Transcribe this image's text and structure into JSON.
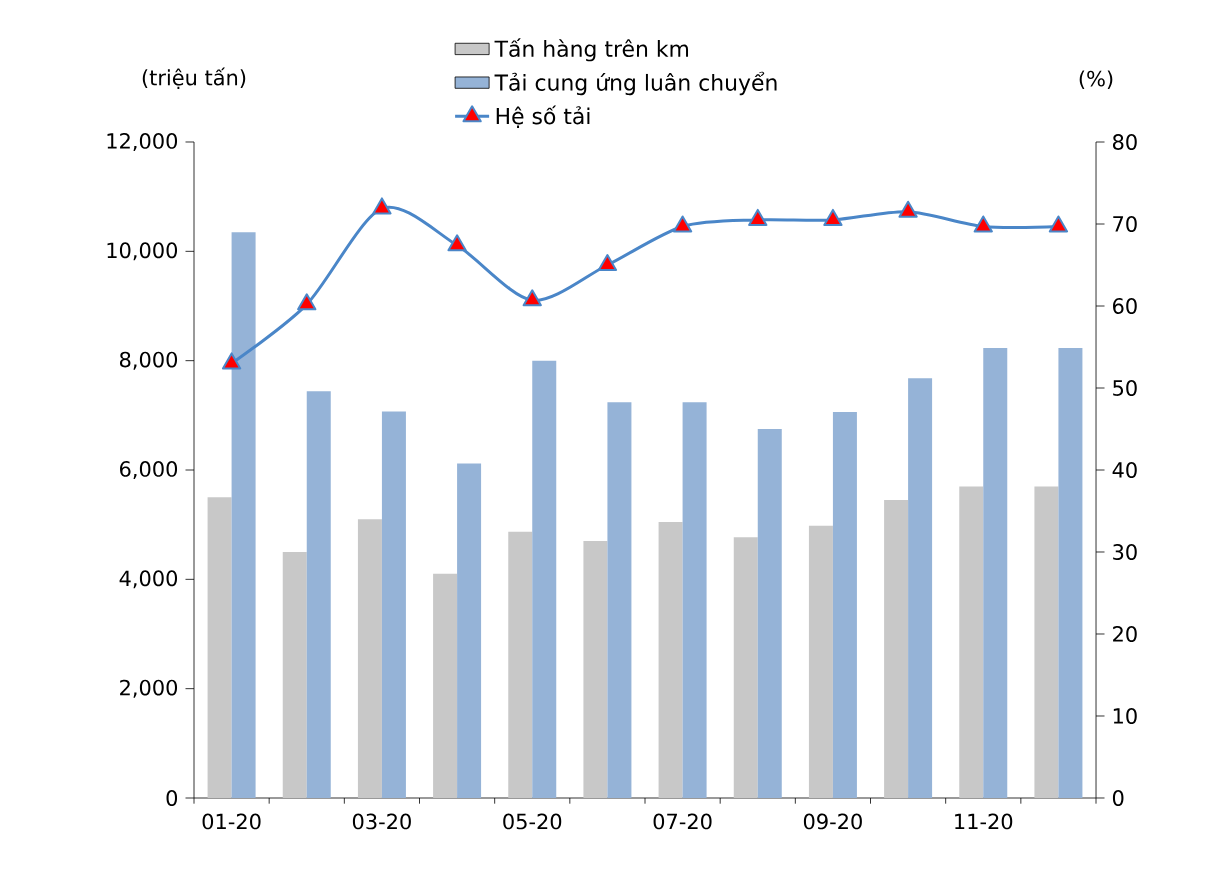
{
  "chart_data": {
    "type": "bar",
    "categories": [
      "01-20",
      null,
      "03-20",
      null,
      "05-20",
      null,
      "07-20",
      null,
      "09-20",
      null,
      "11-20",
      null
    ],
    "ylabel": "(triệu tấn)",
    "y2label": "(%)",
    "ylim": [
      0,
      12000
    ],
    "yticks": [
      {
        "value": 0,
        "label": "0"
      },
      {
        "value": 2000,
        "label": "2,000"
      },
      {
        "value": 4000,
        "label": "4,000"
      },
      {
        "value": 6000,
        "label": "6,000"
      },
      {
        "value": 8000,
        "label": "8,000"
      },
      {
        "value": 10000,
        "label": "10,000"
      },
      {
        "value": 12000,
        "label": "12,000"
      }
    ],
    "y2lim": [
      0,
      80
    ],
    "y2ticks": [
      0,
      10,
      20,
      30,
      40,
      50,
      60,
      70,
      80
    ],
    "legend": "top",
    "grid": false,
    "series": [
      {
        "name": "Tấn hàng trên km",
        "color": "#c8c8c8",
        "values": [
          5500,
          4500,
          5100,
          4100,
          4870,
          4700,
          5050,
          4770,
          4980,
          5450,
          5700,
          5700
        ]
      },
      {
        "name": "Tải cung ứng luân chuyển",
        "color": "#95b3d7",
        "values": [
          10350,
          7440,
          7070,
          6120,
          8000,
          7240,
          7240,
          6750,
          7060,
          7680,
          8230,
          8230
        ]
      },
      {
        "name": "Hệ số tải",
        "type": "line",
        "axis": "y2",
        "color": "#4a86c8",
        "marker": "triangle",
        "line_style": "solid",
        "values": [
          53,
          60.2,
          71.9,
          67.4,
          60.7,
          65,
          69.7,
          70.5,
          70.5,
          71.5,
          69.7,
          69.7
        ]
      }
    ]
  }
}
